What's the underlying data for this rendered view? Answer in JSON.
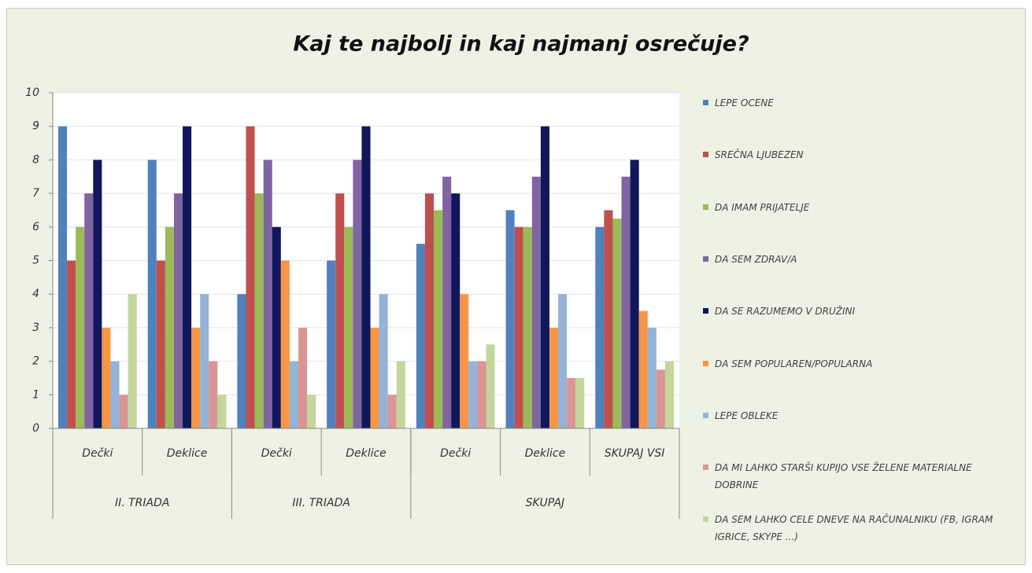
{
  "chart_data": {
    "type": "bar",
    "title": "Kaj te najbolj in kaj najmanj osrečuje?",
    "category_groups": [
      {
        "name": "II. TRIADA",
        "categories": [
          "Dečki",
          "Deklice"
        ]
      },
      {
        "name": "III. TRIADA",
        "categories": [
          "Dečki",
          "Deklice"
        ]
      },
      {
        "name": "SKUPAJ",
        "categories": [
          "Dečki",
          "Deklice",
          "SKUPAJ VSI"
        ]
      }
    ],
    "series": [
      {
        "name": "LEPE OCENE",
        "color": "#4f81bd",
        "values": [
          9,
          8,
          4,
          5,
          5.5,
          6.5,
          6
        ]
      },
      {
        "name": "SREČNA LJUBEZEN",
        "color": "#c0504d",
        "values": [
          5,
          5,
          9,
          7,
          7,
          6,
          6.5
        ]
      },
      {
        "name": "DA IMAM PRIJATELJE",
        "color": "#9bbb59",
        "values": [
          6,
          6,
          7,
          6,
          6.5,
          6,
          6.25
        ]
      },
      {
        "name": "DA SEM ZDRAV/A",
        "color": "#8064a2",
        "values": [
          7,
          7,
          8,
          8,
          7.5,
          7.5,
          7.5
        ]
      },
      {
        "name": "DA SE RAZUMEMO V DRUŽINI",
        "color": "#10175a",
        "values": [
          8,
          9,
          6,
          9,
          7,
          9,
          8
        ]
      },
      {
        "name": "DA SEM POPULAREN/POPULARNA",
        "color": "#f79646",
        "values": [
          3,
          3,
          5,
          3,
          4,
          3,
          3.5
        ]
      },
      {
        "name": "LEPE OBLEKE",
        "color": "#95b3d7",
        "values": [
          2,
          4,
          2,
          4,
          2,
          4,
          3
        ]
      },
      {
        "name": "DA MI LAHKO STARŠI KUPIJO VSE ŽELENE MATERIALNE DOBRINE",
        "color": "#d99694",
        "values": [
          1,
          2,
          3,
          1,
          2,
          1.5,
          1.75
        ]
      },
      {
        "name": "DA SEM LAHKO CELE DNEVE NA RAČUNALNIKU (FB, IGRAM IGRICE, SKYPE ...)",
        "color": "#c3d69b",
        "values": [
          4,
          1,
          1,
          2,
          2.5,
          1.5,
          2
        ]
      }
    ],
    "ylim": [
      0,
      10
    ],
    "yticks": [
      0,
      1,
      2,
      3,
      4,
      5,
      6,
      7,
      8,
      9,
      10
    ],
    "grid": true,
    "legend": "right"
  }
}
